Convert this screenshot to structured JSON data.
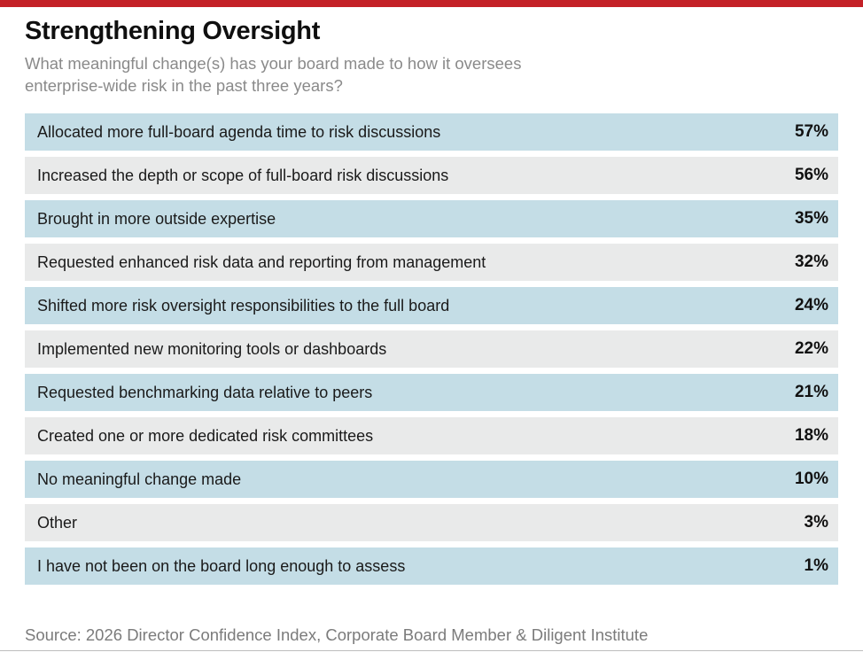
{
  "page": {
    "title": "Strengthening Oversight",
    "subtitle_line1": "What meaningful change(s) has your board made to how it oversees",
    "subtitle_line2": "enterprise-wide risk in the past three years?",
    "source": "Source: 2026 Director Confidence Index, Corporate Board Member & Diligent Institute"
  },
  "colors": {
    "accent_red": "#C42127",
    "row_blue": "#C4DDE6",
    "row_gray": "#E9EAEA",
    "text_dark": "#1A1A1A",
    "muted_gray": "#8A8A8A",
    "source_gray": "#7B7B7B",
    "bottom_rule_gray": "#BDBDBD"
  },
  "rows": [
    {
      "label": "Allocated more full-board agenda time to risk discussions",
      "value": "57%"
    },
    {
      "label": "Increased the depth or scope of full-board risk discussions",
      "value": "56%"
    },
    {
      "label": "Brought in more outside expertise",
      "value": "35%"
    },
    {
      "label": "Requested enhanced risk data and reporting from management",
      "value": "32%"
    },
    {
      "label": "Shifted more risk oversight responsibilities to the full board",
      "value": "24%"
    },
    {
      "label": "Implemented new monitoring tools or dashboards",
      "value": "22%"
    },
    {
      "label": "Requested benchmarking data relative to peers",
      "value": "21%"
    },
    {
      "label": "Created one or more dedicated risk committees",
      "value": "18%"
    },
    {
      "label": "No meaningful change made",
      "value": "10%"
    },
    {
      "label": "Other",
      "value": "3%"
    },
    {
      "label": "I have not been on the board long enough to assess",
      "value": "1%"
    }
  ],
  "chart_data": {
    "type": "table",
    "title": "Strengthening Oversight",
    "subtitle": "What meaningful change(s) has your board made to how it oversees enterprise-wide risk in the past three years?",
    "categories": [
      "Allocated more full-board agenda time to risk discussions",
      "Increased the depth or scope of full-board risk discussions",
      "Brought in more outside expertise",
      "Requested enhanced risk data and reporting from management",
      "Shifted more risk oversight responsibilities to the full board",
      "Implemented new monitoring tools or dashboards",
      "Requested benchmarking data relative to peers",
      "Created one or more dedicated risk committees",
      "No meaningful change made",
      "Other",
      "I have not been on the board long enough to assess"
    ],
    "values": [
      57,
      56,
      35,
      32,
      24,
      22,
      21,
      18,
      10,
      3,
      1
    ],
    "unit": "%",
    "layout": "ranked list, alternating light-blue/light-gray row bands, values right-aligned bold",
    "source": "Source: 2026 Director Confidence Index, Corporate Board Member & Diligent Institute"
  }
}
